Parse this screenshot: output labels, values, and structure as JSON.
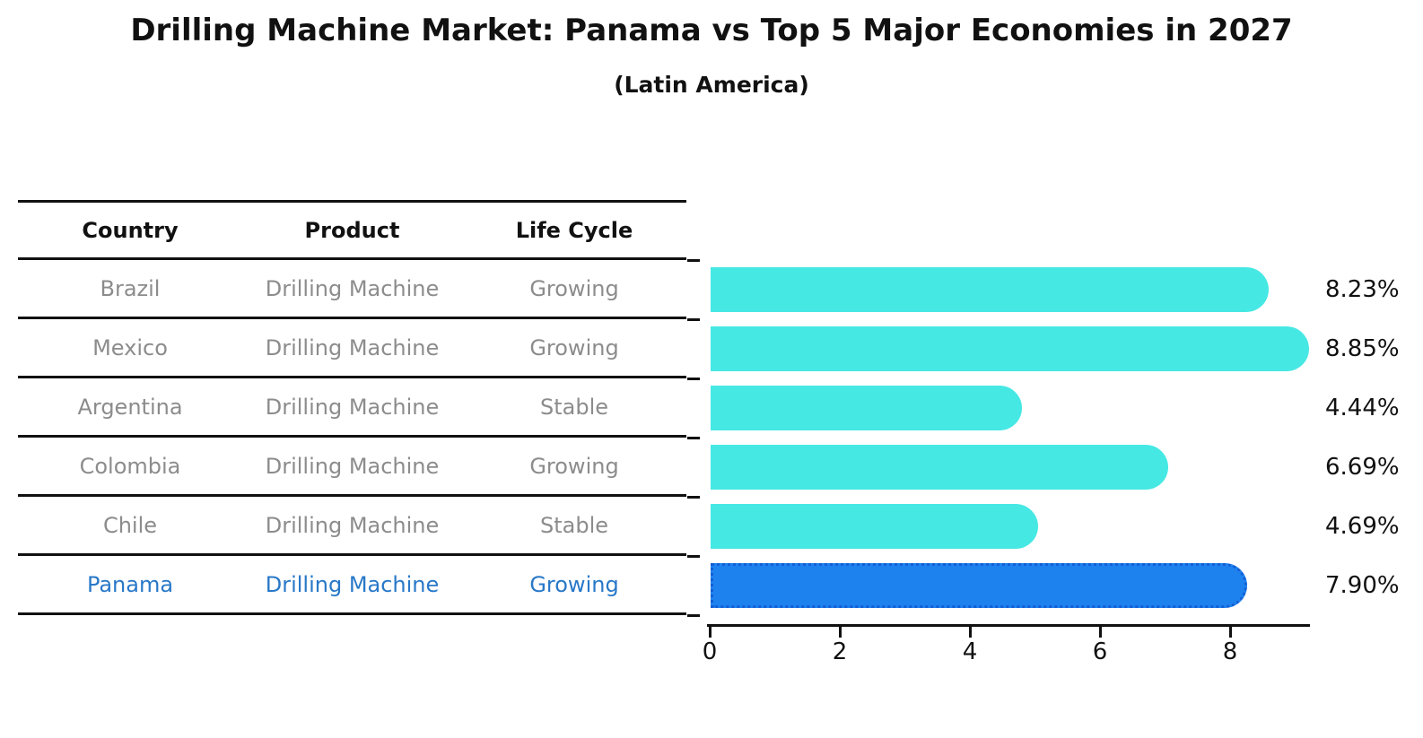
{
  "title": "Drilling Machine Market: Panama vs Top 5 Major Economies in 2027",
  "subtitle": "(Latin America)",
  "table": {
    "headers": [
      "Country",
      "Product",
      "Life Cycle"
    ],
    "rows": [
      {
        "country": "Brazil",
        "product": "Drilling Machine",
        "life_cycle": "Growing",
        "highlight": false
      },
      {
        "country": "Mexico",
        "product": "Drilling Machine",
        "life_cycle": "Growing",
        "highlight": false
      },
      {
        "country": "Argentina",
        "product": "Drilling Machine",
        "life_cycle": "Stable",
        "highlight": false
      },
      {
        "country": "Colombia",
        "product": "Drilling Machine",
        "life_cycle": "Growing",
        "highlight": false
      },
      {
        "country": "Chile",
        "product": "Drilling Machine",
        "life_cycle": "Stable",
        "highlight": false
      },
      {
        "country": "Panama",
        "product": "Drilling Machine",
        "life_cycle": "Growing",
        "highlight": true
      }
    ]
  },
  "chart_data": {
    "type": "bar",
    "orientation": "horizontal",
    "title": "Drilling Machine Market: Panama vs Top 5 Major Economies in 2027 (Latin America)",
    "categories": [
      "Brazil",
      "Mexico",
      "Argentina",
      "Colombia",
      "Chile",
      "Panama"
    ],
    "values": [
      8.23,
      8.85,
      4.44,
      6.69,
      4.69,
      7.9
    ],
    "value_labels": [
      "8.23%",
      "8.85%",
      "4.44%",
      "6.69%",
      "4.69%",
      "7.90%"
    ],
    "xticks": [
      "0",
      "2",
      "4",
      "6",
      "8"
    ],
    "xtick_values": [
      0,
      2,
      4,
      6,
      8
    ],
    "xlim": [
      0,
      9.2
    ],
    "grid": false,
    "legend": "none",
    "highlight_index": 5,
    "colors": {
      "bar": "#46E8E4",
      "highlight_bar": "#1E82EE",
      "highlight_edge": "#135FD6",
      "axis": "#111111",
      "table_text": "#8c8c8c",
      "highlight_text": "#2878C8"
    }
  }
}
